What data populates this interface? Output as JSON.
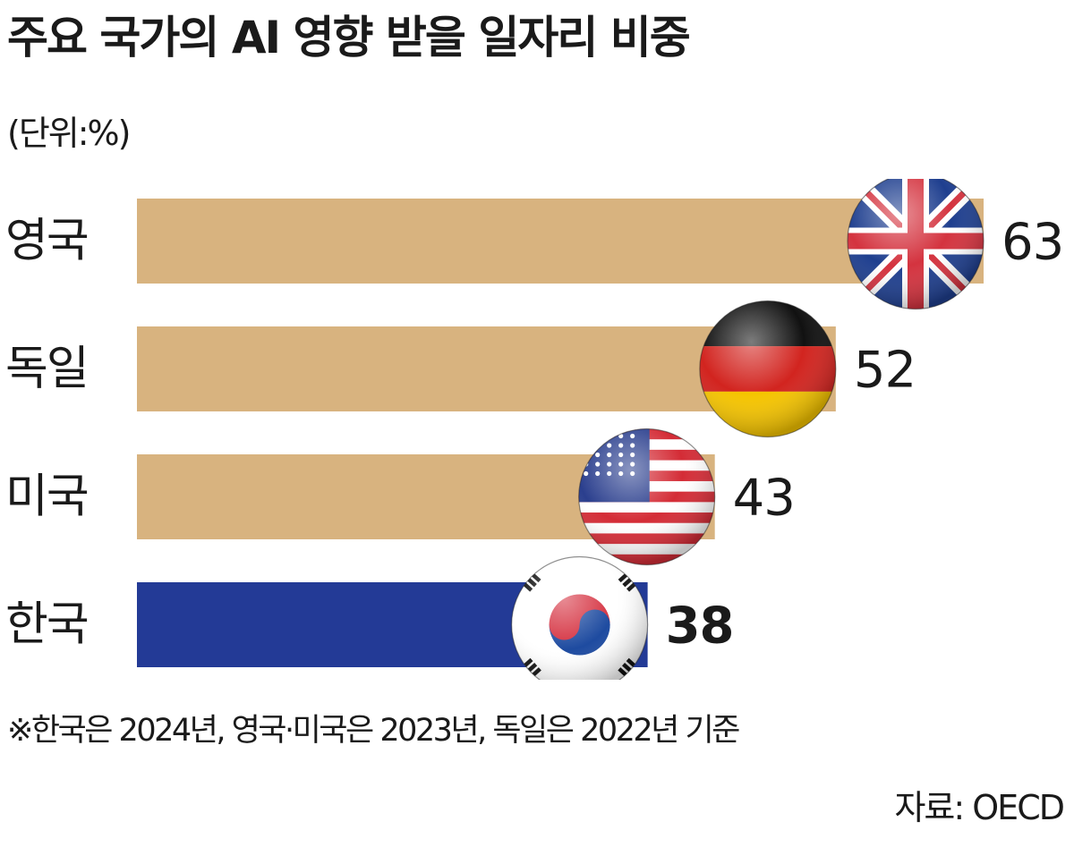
{
  "title": "주요 국가의 AI 영향 받을 일자리 비중",
  "unit_label": "(단위:%)",
  "note": "※한국은 2024년, 영국·미국은 2023년, 독일은 2022년 기준",
  "source": "자료: OECD",
  "colors": {
    "bar_default": "#d8b37f",
    "bar_highlight": "#233a96",
    "text": "#1a1a1a"
  },
  "chart_data": {
    "type": "bar",
    "orientation": "horizontal",
    "title": "주요 국가의 AI 영향 받을 일자리 비중",
    "unit": "(단위:%)",
    "categories": [
      "영국",
      "독일",
      "미국",
      "한국"
    ],
    "values": [
      63,
      52,
      43,
      38
    ],
    "value_labels": [
      "63",
      "52",
      "43",
      "38"
    ],
    "flags": [
      "uk-flag-icon",
      "germany-flag-icon",
      "usa-flag-icon",
      "korea-flag-icon"
    ],
    "highlight": "한국",
    "xlim": [
      0,
      63
    ],
    "grid": false
  }
}
